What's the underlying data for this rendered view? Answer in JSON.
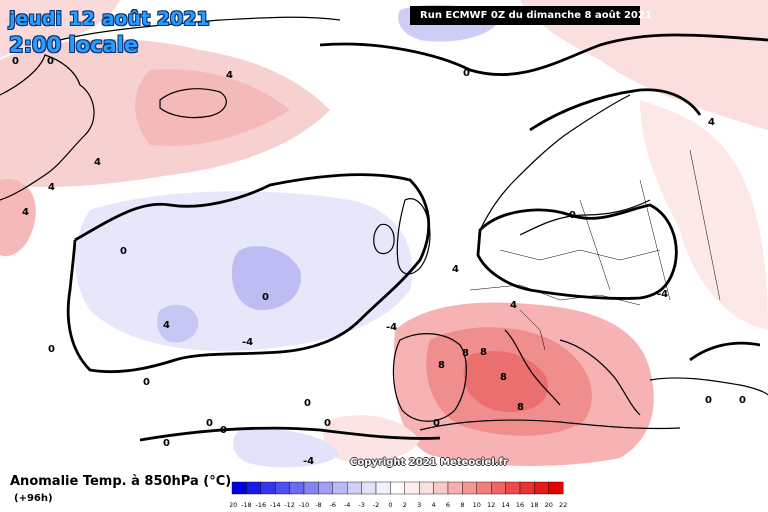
{
  "header": {
    "date": "jeudi 12 août 2021",
    "time": "2:00 locale",
    "run": "Run ECMWF 0Z du dimanche 8 août 2021"
  },
  "map": {
    "copyright": "Copyright 2021 Meteociel.fr",
    "contour_labels": [
      "0",
      "4",
      "0",
      "4",
      "4",
      "4",
      "4",
      "0",
      "0",
      "4",
      "-4",
      "-4",
      "0",
      "0",
      "0",
      "0",
      "0",
      "0",
      "0",
      "8",
      "8",
      "8",
      "8",
      "0",
      "0",
      "-4",
      "-4",
      "4",
      "0",
      "0",
      "0",
      "4",
      "8"
    ]
  },
  "legend": {
    "title": "Anomalie Temp. à 850hPa (°C)",
    "lead": "(+96h)",
    "ticks": [
      "-20",
      "-18",
      "-16",
      "-14",
      "-12",
      "-10",
      "-8",
      "-6",
      "-4",
      "-3",
      "-2",
      "0",
      "2",
      "3",
      "4",
      "6",
      "8",
      "10",
      "12",
      "14",
      "16",
      "18",
      "20",
      "22"
    ],
    "colors": [
      "#0000e6",
      "#1a1ae8",
      "#3434ea",
      "#4f4fed",
      "#6a6aef",
      "#8484f1",
      "#9f9ff4",
      "#b9b9f6",
      "#cfcff9",
      "#e2e2fb",
      "#f1f1fd",
      "#ffffff",
      "#fdeeee",
      "#fbdede",
      "#f9c9c9",
      "#f6b0b0",
      "#f49696",
      "#f27d7d",
      "#ef6464",
      "#ed4b4b",
      "#ea3232",
      "#e81919",
      "#e60000"
    ]
  }
}
